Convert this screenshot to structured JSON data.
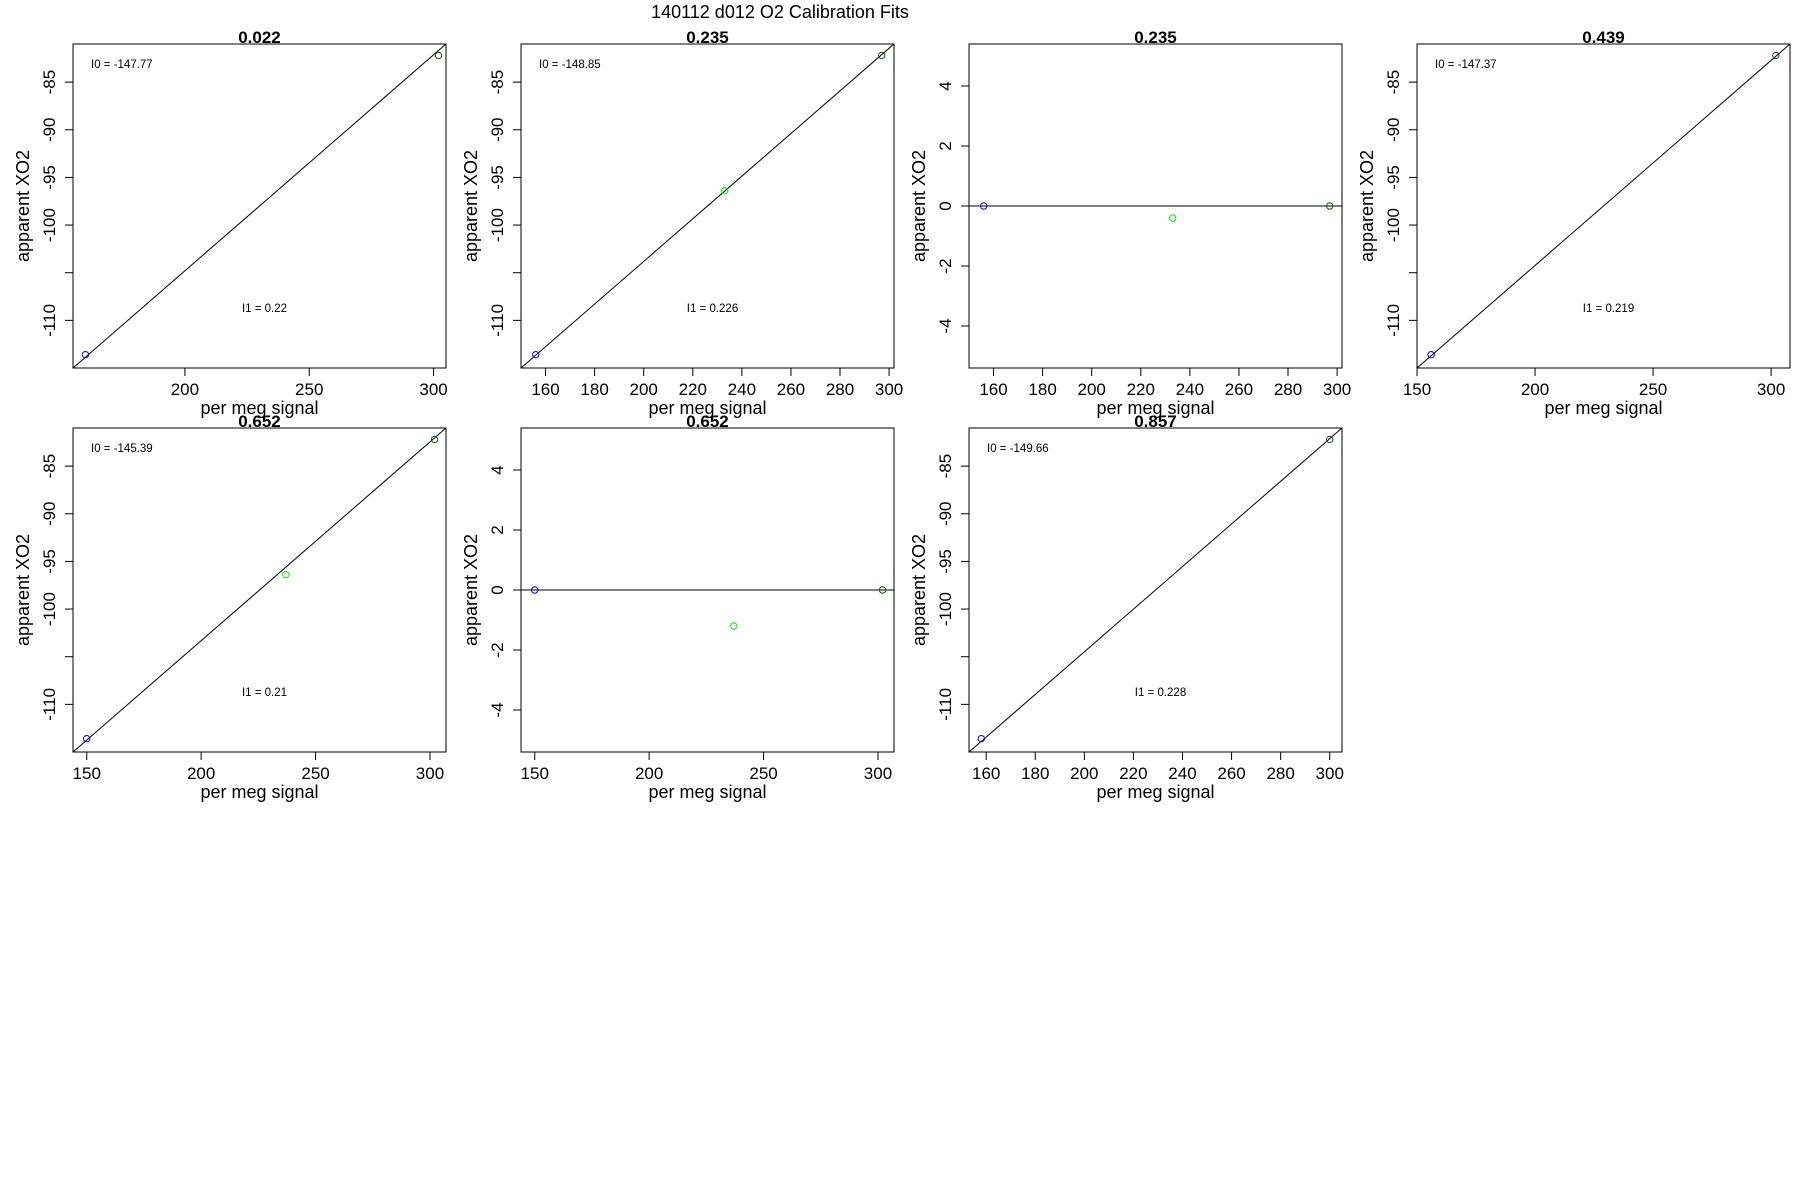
{
  "figure": {
    "title": "140112   d012   O2 Calibration Fits"
  },
  "colors": {
    "low": "#0000ff",
    "mid": "#00ee00",
    "high": "#006400",
    "line": "#000000"
  },
  "chart_data": [
    {
      "type": "scatter",
      "title": "0.022",
      "xlabel": "per meg signal",
      "ylabel": "apparent XO2",
      "xlim": [
        155,
        305
      ],
      "ylim": [
        -115,
        -81
      ],
      "xticks": [
        200,
        250,
        300
      ],
      "yticks": [
        -110,
        -100,
        -95,
        -90,
        -85
      ],
      "ytick_marks": [
        -110,
        -105,
        -100,
        -95,
        -90,
        -85
      ],
      "grid": false,
      "points": [
        {
          "x": 160,
          "y": -113.6,
          "color": "low"
        },
        {
          "x": 302,
          "y": -82.2,
          "color": "high"
        }
      ],
      "fit_line": {
        "x": [
          155,
          305
        ],
        "y": [
          -115,
          -81
        ]
      },
      "annotations": {
        "I0": "I0 =  -147.77",
        "I1": "I1 =  0.22"
      }
    },
    {
      "type": "scatter",
      "title": "0.235",
      "xlabel": "per meg signal",
      "ylabel": "apparent XO2",
      "xlim": [
        150,
        302
      ],
      "ylim": [
        -115,
        -81
      ],
      "xticks": [
        160,
        180,
        200,
        220,
        240,
        260,
        280,
        300
      ],
      "yticks": [
        -110,
        -100,
        -95,
        -90,
        -85
      ],
      "ytick_marks": [
        -110,
        -105,
        -100,
        -95,
        -90,
        -85
      ],
      "grid": false,
      "points": [
        {
          "x": 156,
          "y": -113.6,
          "color": "low"
        },
        {
          "x": 233,
          "y": -96.4,
          "color": "mid"
        },
        {
          "x": 297,
          "y": -82.2,
          "color": "high"
        }
      ],
      "fit_line": {
        "x": [
          150,
          302
        ],
        "y": [
          -115,
          -81
        ]
      },
      "annotations": {
        "I0": "I0 =  -148.85",
        "I1": "I1 =  0.226"
      }
    },
    {
      "type": "scatter",
      "title": "0.235",
      "xlabel": "per meg signal",
      "ylabel": "apparent XO2",
      "xlim": [
        150,
        302
      ],
      "ylim": [
        -5.4,
        5.4
      ],
      "xticks": [
        160,
        180,
        200,
        220,
        240,
        260,
        280,
        300
      ],
      "yticks": [
        -4,
        -2,
        0,
        2,
        4
      ],
      "grid": false,
      "points": [
        {
          "x": 156,
          "y": 0,
          "color": "low"
        },
        {
          "x": 233,
          "y": -0.4,
          "color": "mid"
        },
        {
          "x": 297,
          "y": 0,
          "color": "high"
        }
      ],
      "fit_line": {
        "x": [
          150,
          302
        ],
        "y": [
          0,
          0
        ]
      }
    },
    {
      "type": "scatter",
      "title": "0.439",
      "xlabel": "per meg signal",
      "ylabel": "apparent XO2",
      "xlim": [
        150,
        308
      ],
      "ylim": [
        -115,
        -81
      ],
      "xticks": [
        150,
        200,
        250,
        300
      ],
      "yticks": [
        -110,
        -100,
        -95,
        -90,
        -85
      ],
      "ytick_marks": [
        -110,
        -105,
        -100,
        -95,
        -90,
        -85
      ],
      "grid": false,
      "points": [
        {
          "x": 156,
          "y": -113.6,
          "color": "low"
        },
        {
          "x": 302,
          "y": -82.2,
          "color": "high"
        }
      ],
      "fit_line": {
        "x": [
          150,
          308
        ],
        "y": [
          -115,
          -81
        ]
      },
      "annotations": {
        "I0": "I0 =  -147.37",
        "I1": "I1 =  0.219"
      }
    },
    {
      "type": "scatter",
      "title": "0.652",
      "xlabel": "per meg signal",
      "ylabel": "apparent XO2",
      "xlim": [
        144,
        307
      ],
      "ylim": [
        -115,
        -81
      ],
      "xticks": [
        150,
        200,
        250,
        300
      ],
      "yticks": [
        -110,
        -100,
        -95,
        -90,
        -85
      ],
      "ytick_marks": [
        -110,
        -105,
        -100,
        -95,
        -90,
        -85
      ],
      "grid": false,
      "points": [
        {
          "x": 150,
          "y": -113.6,
          "color": "low"
        },
        {
          "x": 237,
          "y": -96.4,
          "color": "mid"
        },
        {
          "x": 302,
          "y": -82.2,
          "color": "high"
        }
      ],
      "fit_line": {
        "x": [
          144,
          307
        ],
        "y": [
          -115,
          -81
        ]
      },
      "annotations": {
        "I0": "I0 =  -145.39",
        "I1": "I1 =  0.21"
      }
    },
    {
      "type": "scatter",
      "title": "0.652",
      "xlabel": "per meg signal",
      "ylabel": "apparent XO2",
      "xlim": [
        144,
        307
      ],
      "ylim": [
        -5.4,
        5.4
      ],
      "xticks": [
        150,
        200,
        250,
        300
      ],
      "yticks": [
        -4,
        -2,
        0,
        2,
        4
      ],
      "grid": false,
      "points": [
        {
          "x": 150,
          "y": 0,
          "color": "low"
        },
        {
          "x": 237,
          "y": -1.2,
          "color": "mid"
        },
        {
          "x": 302,
          "y": 0,
          "color": "high"
        }
      ],
      "fit_line": {
        "x": [
          144,
          307
        ],
        "y": [
          0,
          0
        ]
      }
    },
    {
      "type": "scatter",
      "title": "0.857",
      "xlabel": "per meg signal",
      "ylabel": "apparent XO2",
      "xlim": [
        153,
        305
      ],
      "ylim": [
        -115,
        -81
      ],
      "xticks": [
        160,
        180,
        200,
        220,
        240,
        260,
        280,
        300
      ],
      "yticks": [
        -110,
        -100,
        -95,
        -90,
        -85
      ],
      "ytick_marks": [
        -110,
        -105,
        -100,
        -95,
        -90,
        -85
      ],
      "grid": false,
      "points": [
        {
          "x": 158,
          "y": -113.6,
          "color": "low"
        },
        {
          "x": 300,
          "y": -82.2,
          "color": "high"
        }
      ],
      "fit_line": {
        "x": [
          153,
          305
        ],
        "y": [
          -115,
          -81
        ]
      },
      "annotations": {
        "I0": "I0 =  -149.66",
        "I1": "I1 =  0.228"
      }
    }
  ]
}
